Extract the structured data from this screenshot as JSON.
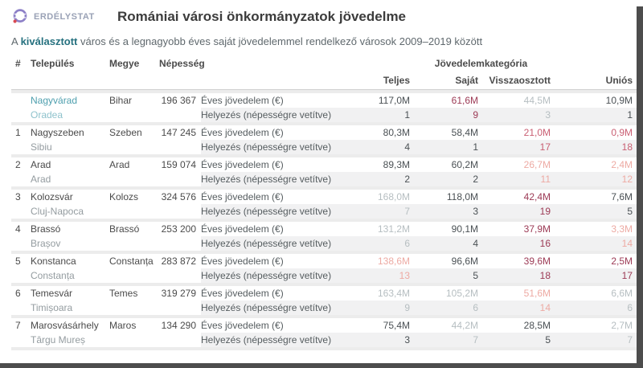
{
  "page": {
    "brand": "ERDÉLYSTAT",
    "title": "Romániai városi önkormányzatok jövedelme",
    "subtitle_prefix": "A ",
    "subtitle_highlight": "kiválasztott",
    "subtitle_suffix": " város és a legnagyobb éves saját jövedelemmel rendelkező városok 2009–2019 között"
  },
  "colors": {
    "accent_teal": "#26717f",
    "selected_city": "#4e9fae",
    "selected_city_secondary": "#8ec2cc",
    "value_dark": "#4a5054",
    "value_gray": "#b6bec1",
    "value_maroon": "#9c3a55",
    "value_rose": "#c95e72",
    "value_salmon": "#edaaa3",
    "brand_text": "#9aa2b6",
    "logo_purple": "#8d80c7",
    "logo_red": "#d84a52"
  },
  "table": {
    "headers": {
      "rank": "#",
      "settlement": "Település",
      "county": "Megye",
      "population": "Népesség",
      "category_group": "Jövedelemkategória",
      "categories": [
        "Teljes",
        "Saját",
        "Visszaosztott",
        "Uniós"
      ]
    },
    "row_labels": {
      "income": "Éves jövedelem (€)",
      "ranking": "Helyezés (népességre vetítve)"
    },
    "rows": [
      {
        "rank": "",
        "name_hu": "Nagyvárad",
        "name_ro": "Oradea",
        "county": "Bihar",
        "population": "196 367",
        "selected": true,
        "income": [
          "117,0M",
          "61,6M",
          "44,5M",
          "10,9M"
        ],
        "income_colors": [
          "dark",
          "maroon",
          "gray",
          "dark"
        ],
        "ranking": [
          "1",
          "9",
          "3",
          "1"
        ],
        "ranking_colors": [
          "dark",
          "maroon",
          "gray",
          "dark"
        ]
      },
      {
        "rank": "1",
        "name_hu": "Nagyszeben",
        "name_ro": "Sibiu",
        "county": "Szeben",
        "population": "147 245",
        "selected": false,
        "income": [
          "80,3M",
          "58,4M",
          "21,0M",
          "0,9M"
        ],
        "income_colors": [
          "dark",
          "dark",
          "rose",
          "rose"
        ],
        "ranking": [
          "4",
          "1",
          "17",
          "18"
        ],
        "ranking_colors": [
          "dark",
          "dark",
          "rose",
          "rose"
        ]
      },
      {
        "rank": "2",
        "name_hu": "Arad",
        "name_ro": "Arad",
        "county": "Arad",
        "population": "159 074",
        "selected": false,
        "income": [
          "89,3M",
          "60,2M",
          "26,7M",
          "2,4M"
        ],
        "income_colors": [
          "dark",
          "dark",
          "salmon",
          "salmon"
        ],
        "ranking": [
          "2",
          "2",
          "11",
          "12"
        ],
        "ranking_colors": [
          "dark",
          "dark",
          "salmon",
          "salmon"
        ]
      },
      {
        "rank": "3",
        "name_hu": "Kolozsvár",
        "name_ro": "Cluj-Napoca",
        "county": "Kolozs",
        "population": "324 576",
        "selected": false,
        "income": [
          "168,0M",
          "118,0M",
          "42,4M",
          "7,6M"
        ],
        "income_colors": [
          "gray",
          "dark",
          "maroon",
          "dark"
        ],
        "ranking": [
          "7",
          "3",
          "19",
          "5"
        ],
        "ranking_colors": [
          "gray",
          "dark",
          "maroon",
          "dark"
        ]
      },
      {
        "rank": "4",
        "name_hu": "Brassó",
        "name_ro": "Brașov",
        "county": "Brassó",
        "population": "253 200",
        "selected": false,
        "income": [
          "131,2M",
          "90,1M",
          "37,9M",
          "3,3M"
        ],
        "income_colors": [
          "gray",
          "dark",
          "maroon",
          "salmon"
        ],
        "ranking": [
          "6",
          "4",
          "16",
          "14"
        ],
        "ranking_colors": [
          "gray",
          "dark",
          "maroon",
          "salmon"
        ]
      },
      {
        "rank": "5",
        "name_hu": "Konstanca",
        "name_ro": "Constanța",
        "county": "Constanța",
        "population": "283 872",
        "selected": false,
        "income": [
          "138,6M",
          "96,6M",
          "39,6M",
          "2,5M"
        ],
        "income_colors": [
          "salmon",
          "dark",
          "maroon",
          "maroon"
        ],
        "ranking": [
          "13",
          "5",
          "18",
          "17"
        ],
        "ranking_colors": [
          "salmon",
          "dark",
          "maroon",
          "maroon"
        ]
      },
      {
        "rank": "6",
        "name_hu": "Temesvár",
        "name_ro": "Timișoara",
        "county": "Temes",
        "population": "319 279",
        "selected": false,
        "income": [
          "163,4M",
          "105,2M",
          "51,6M",
          "6,6M"
        ],
        "income_colors": [
          "gray",
          "gray",
          "salmon",
          "gray"
        ],
        "ranking": [
          "9",
          "6",
          "14",
          "6"
        ],
        "ranking_colors": [
          "gray",
          "gray",
          "salmon",
          "gray"
        ]
      },
      {
        "rank": "7",
        "name_hu": "Marosvásárhely",
        "name_ro": "Târgu Mureș",
        "county": "Maros",
        "population": "134 290",
        "selected": false,
        "income": [
          "75,4M",
          "44,2M",
          "28,5M",
          "2,7M"
        ],
        "income_colors": [
          "dark",
          "gray",
          "dark",
          "gray"
        ],
        "ranking": [
          "3",
          "7",
          "5",
          "7"
        ],
        "ranking_colors": [
          "dark",
          "gray",
          "dark",
          "gray"
        ]
      }
    ]
  }
}
